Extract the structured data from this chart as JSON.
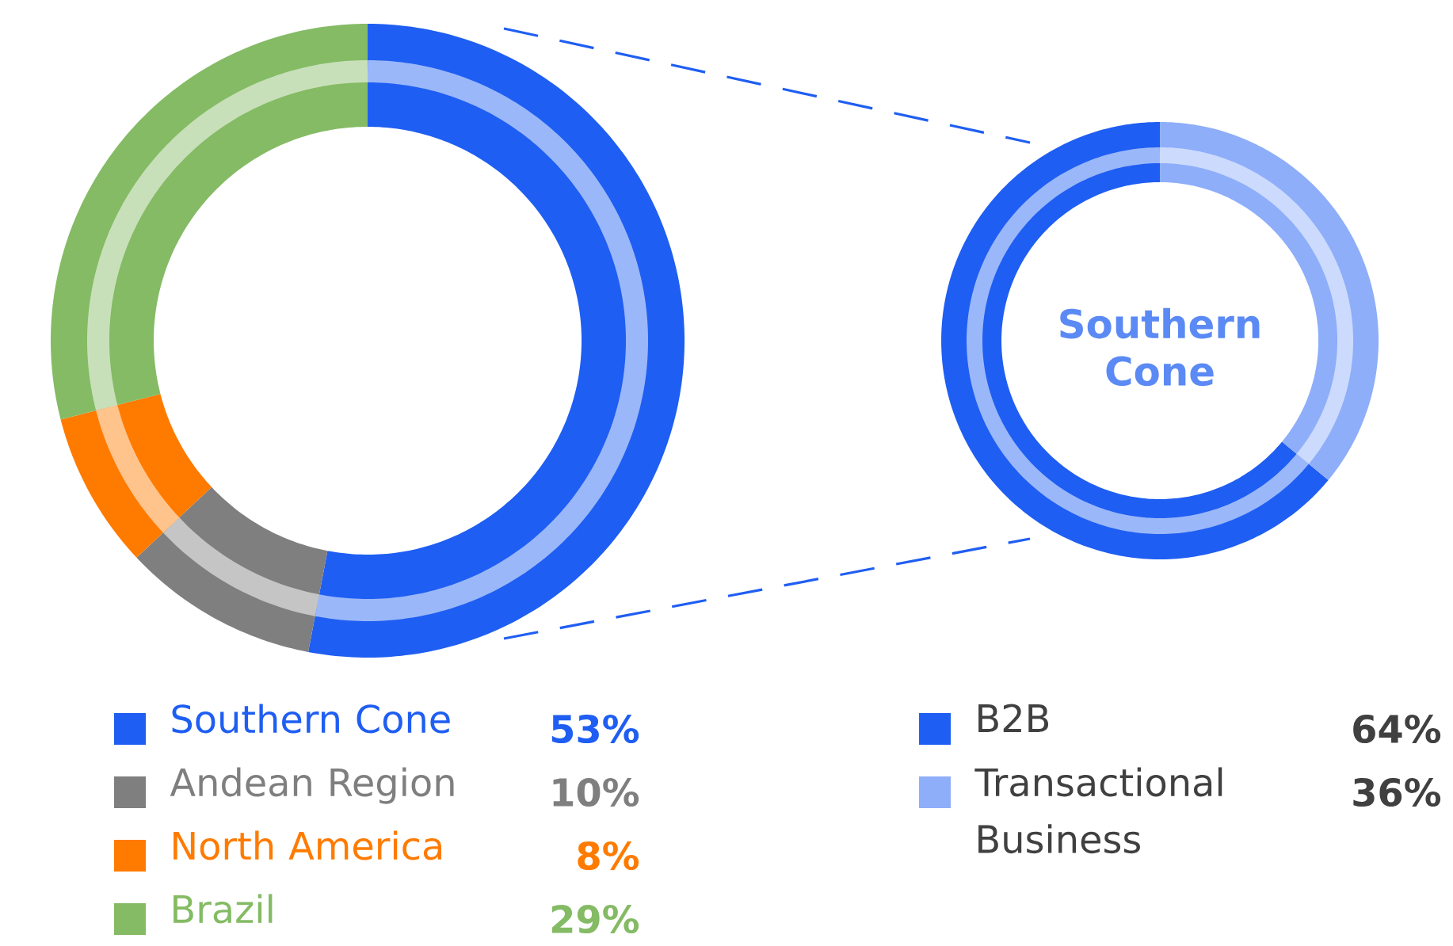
{
  "chart_data": [
    {
      "type": "donut",
      "categories": [
        "Southern Cone",
        "Andean Region",
        "North America",
        "Brazil"
      ],
      "values": [
        53,
        10,
        8,
        29
      ],
      "colors": [
        "#1f5ef2",
        "#7f7f7f",
        "#ff7b00",
        "#84bb64"
      ],
      "value_labels": [
        "53%",
        "10%",
        "8%",
        "29%"
      ],
      "legend": "bottom"
    },
    {
      "type": "donut",
      "title": "Southern Cone",
      "categories": [
        "B2B",
        "Transactional Business"
      ],
      "values": [
        64,
        36
      ],
      "colors": [
        "#1f5ef2",
        "#8eaefa"
      ],
      "value_labels": [
        "64%",
        "36%"
      ],
      "legend": "bottom"
    }
  ]
}
